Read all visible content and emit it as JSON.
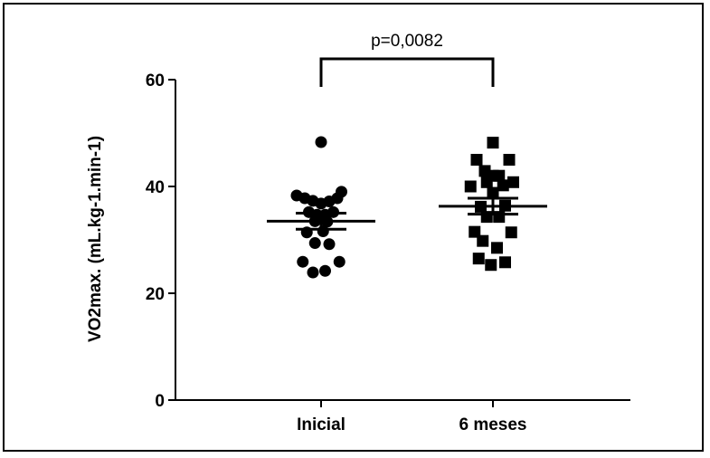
{
  "chart_data": {
    "type": "scatter",
    "categories": [
      "Inicial",
      "6 meses"
    ],
    "ylabel": "VO2max. (mL.kg-1.min-1)",
    "xlabel": "",
    "title": "",
    "ylim": [
      0,
      60
    ],
    "yticks": [
      0,
      20,
      40,
      60
    ],
    "grid": false,
    "series": [
      {
        "category": "Inicial",
        "marker": "circle",
        "mean": 33.5,
        "sem_low": 32.0,
        "sem_high": 35.0,
        "points": [
          {
            "offset": 0.0,
            "value": 48.3
          },
          {
            "offset": -0.6,
            "value": 38.3
          },
          {
            "offset": 0.5,
            "value": 39.0
          },
          {
            "offset": -0.4,
            "value": 37.8
          },
          {
            "offset": -0.2,
            "value": 37.3
          },
          {
            "offset": 0.0,
            "value": 36.8
          },
          {
            "offset": 0.2,
            "value": 37.2
          },
          {
            "offset": 0.4,
            "value": 37.8
          },
          {
            "offset": -0.3,
            "value": 35.2
          },
          {
            "offset": -0.1,
            "value": 34.7
          },
          {
            "offset": 0.1,
            "value": 34.7
          },
          {
            "offset": 0.3,
            "value": 35.2
          },
          {
            "offset": -0.15,
            "value": 33.5
          },
          {
            "offset": 0.15,
            "value": 33.4
          },
          {
            "offset": -0.35,
            "value": 31.4
          },
          {
            "offset": 0.05,
            "value": 31.6
          },
          {
            "offset": -0.15,
            "value": 29.4
          },
          {
            "offset": 0.2,
            "value": 29.2
          },
          {
            "offset": -0.45,
            "value": 25.9
          },
          {
            "offset": 0.45,
            "value": 25.9
          },
          {
            "offset": -0.2,
            "value": 23.9
          },
          {
            "offset": 0.1,
            "value": 24.2
          }
        ]
      },
      {
        "category": "6 meses",
        "marker": "square",
        "mean": 36.3,
        "sem_low": 34.8,
        "sem_high": 37.8,
        "points": [
          {
            "offset": 0.0,
            "value": 48.2
          },
          {
            "offset": -0.4,
            "value": 45.0
          },
          {
            "offset": 0.4,
            "value": 45.0
          },
          {
            "offset": -0.2,
            "value": 42.9
          },
          {
            "offset": 0.0,
            "value": 42.0
          },
          {
            "offset": 0.15,
            "value": 42.0
          },
          {
            "offset": -0.55,
            "value": 40.0
          },
          {
            "offset": -0.15,
            "value": 40.8
          },
          {
            "offset": 0.25,
            "value": 40.2
          },
          {
            "offset": 0.5,
            "value": 40.8
          },
          {
            "offset": 0.0,
            "value": 38.8
          },
          {
            "offset": -0.3,
            "value": 36.2
          },
          {
            "offset": 0.3,
            "value": 36.4
          },
          {
            "offset": -0.15,
            "value": 34.3
          },
          {
            "offset": 0.15,
            "value": 34.3
          },
          {
            "offset": -0.45,
            "value": 31.5
          },
          {
            "offset": 0.45,
            "value": 31.4
          },
          {
            "offset": -0.25,
            "value": 29.8
          },
          {
            "offset": 0.1,
            "value": 28.5
          },
          {
            "offset": -0.35,
            "value": 26.5
          },
          {
            "offset": 0.3,
            "value": 25.8
          },
          {
            "offset": -0.05,
            "value": 25.3
          }
        ]
      }
    ],
    "annotations": [
      {
        "type": "bracket",
        "from": "Inicial",
        "to": "6 meses",
        "text": "p=0,0082"
      }
    ]
  }
}
